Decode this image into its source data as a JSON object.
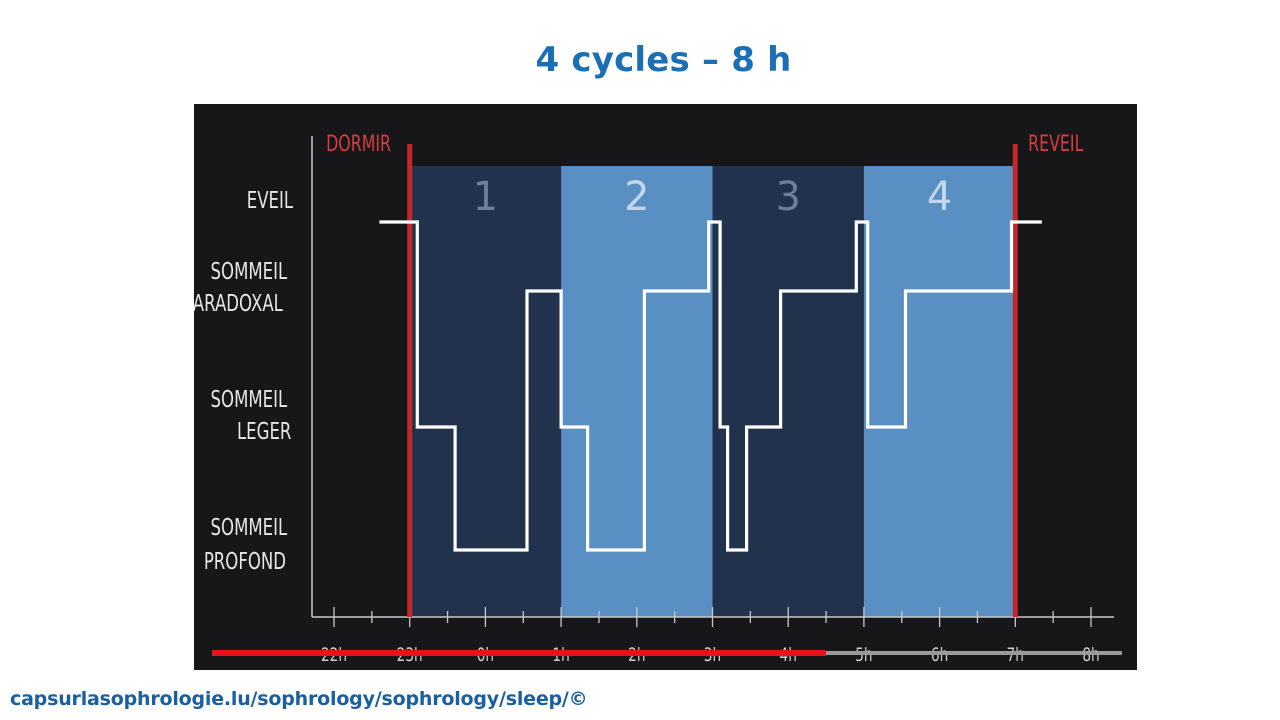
{
  "slide": {
    "title": "4 cycles – 8 h",
    "source": "capsurlasophrologie.lu/sophrology/sophrology/sleep/©"
  },
  "chart_data": {
    "type": "line",
    "step": true,
    "x_ticks": [
      "22h",
      "23h",
      "0h",
      "1h",
      "2h",
      "3h",
      "4h",
      "5h",
      "6h",
      "7h",
      "8h"
    ],
    "xlim": [
      22,
      32
    ],
    "y_levels": [
      {
        "key": "eveil",
        "lines": [
          "EVEIL"
        ],
        "rank": 3
      },
      {
        "key": "paradoxal",
        "lines": [
          "SOMMEIL",
          "PARADOXAL"
        ],
        "rank": 2
      },
      {
        "key": "leger",
        "lines": [
          "SOMMEIL",
          "LEGER"
        ],
        "rank": 1
      },
      {
        "key": "profond",
        "lines": [
          "SOMMEIL",
          "PROFOND"
        ],
        "rank": 0
      }
    ],
    "cycles": [
      {
        "label": "1",
        "start": 23,
        "end": 25,
        "shade": "dark"
      },
      {
        "label": "2",
        "start": 25,
        "end": 27,
        "shade": "light"
      },
      {
        "label": "3",
        "start": 27,
        "end": 29,
        "shade": "dark"
      },
      {
        "label": "4",
        "start": 29,
        "end": 31,
        "shade": "light"
      }
    ],
    "markers": [
      {
        "label": "DORMIR",
        "x": 23
      },
      {
        "label": "REVEIL",
        "x": 31
      }
    ],
    "hypnogram": [
      {
        "x": 22.6,
        "stage": 3
      },
      {
        "x": 23.1,
        "stage": 3
      },
      {
        "x": 23.1,
        "stage": 1
      },
      {
        "x": 23.6,
        "stage": 1
      },
      {
        "x": 23.6,
        "stage": 0
      },
      {
        "x": 24.55,
        "stage": 0
      },
      {
        "x": 24.55,
        "stage": 2
      },
      {
        "x": 25.0,
        "stage": 2
      },
      {
        "x": 25.0,
        "stage": 1
      },
      {
        "x": 25.35,
        "stage": 1
      },
      {
        "x": 25.35,
        "stage": 0
      },
      {
        "x": 26.1,
        "stage": 0
      },
      {
        "x": 26.1,
        "stage": 2
      },
      {
        "x": 26.95,
        "stage": 2
      },
      {
        "x": 26.95,
        "stage": 3
      },
      {
        "x": 27.1,
        "stage": 3
      },
      {
        "x": 27.1,
        "stage": 1
      },
      {
        "x": 27.2,
        "stage": 1
      },
      {
        "x": 27.2,
        "stage": 0
      },
      {
        "x": 27.45,
        "stage": 0
      },
      {
        "x": 27.45,
        "stage": 1
      },
      {
        "x": 27.9,
        "stage": 1
      },
      {
        "x": 27.9,
        "stage": 2
      },
      {
        "x": 28.9,
        "stage": 2
      },
      {
        "x": 28.9,
        "stage": 3
      },
      {
        "x": 29.05,
        "stage": 3
      },
      {
        "x": 29.05,
        "stage": 1
      },
      {
        "x": 29.55,
        "stage": 1
      },
      {
        "x": 29.55,
        "stage": 2
      },
      {
        "x": 30.95,
        "stage": 2
      },
      {
        "x": 30.95,
        "stage": 3
      },
      {
        "x": 31.35,
        "stage": 3
      }
    ],
    "progress_bar": {
      "start": 22,
      "end": 28.5
    },
    "colors": {
      "background": "#171719",
      "cycle_dark": "#22324d",
      "cycle_light": "#5a8fc3",
      "marker": "#c3272b",
      "trace": "#ffffff",
      "axis": "#c8c8c8",
      "progress": "#e3141b",
      "track": "#9a9a9a",
      "title": "#1a6fb5",
      "source": "#1a5fa0"
    }
  }
}
